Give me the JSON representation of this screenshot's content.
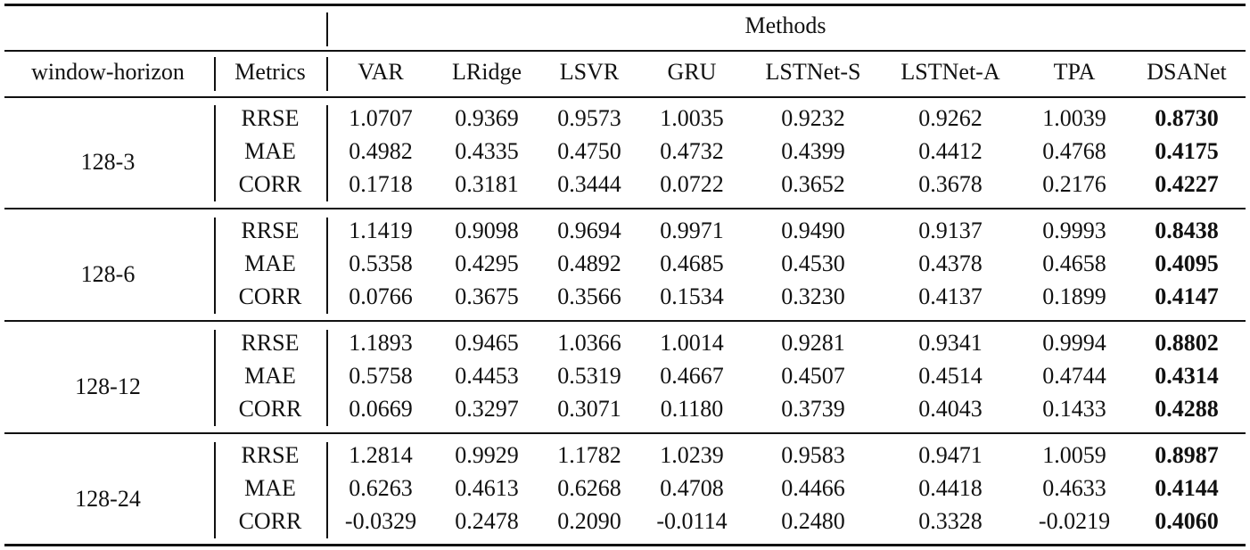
{
  "header": {
    "group_label": "Methods",
    "col_window": "window-horizon",
    "col_metrics": "Metrics",
    "methods": [
      "VAR",
      "LRidge",
      "LSVR",
      "GRU",
      "LSTNet-S",
      "LSTNet-A",
      "TPA",
      "DSANet"
    ]
  },
  "groups": [
    {
      "window": "128-3",
      "rows": [
        {
          "metric": "RRSE",
          "values": [
            "1.0707",
            "0.9369",
            "0.9573",
            "1.0035",
            "0.9232",
            "0.9262",
            "1.0039",
            "0.8730"
          ]
        },
        {
          "metric": "MAE",
          "values": [
            "0.4982",
            "0.4335",
            "0.4750",
            "0.4732",
            "0.4399",
            "0.4412",
            "0.4768",
            "0.4175"
          ]
        },
        {
          "metric": "CORR",
          "values": [
            "0.1718",
            "0.3181",
            "0.3444",
            "0.0722",
            "0.3652",
            "0.3678",
            "0.2176",
            "0.4227"
          ]
        }
      ]
    },
    {
      "window": "128-6",
      "rows": [
        {
          "metric": "RRSE",
          "values": [
            "1.1419",
            "0.9098",
            "0.9694",
            "0.9971",
            "0.9490",
            "0.9137",
            "0.9993",
            "0.8438"
          ]
        },
        {
          "metric": "MAE",
          "values": [
            "0.5358",
            "0.4295",
            "0.4892",
            "0.4685",
            "0.4530",
            "0.4378",
            "0.4658",
            "0.4095"
          ]
        },
        {
          "metric": "CORR",
          "values": [
            "0.0766",
            "0.3675",
            "0.3566",
            "0.1534",
            "0.3230",
            "0.4137",
            "0.1899",
            "0.4147"
          ]
        }
      ]
    },
    {
      "window": "128-12",
      "rows": [
        {
          "metric": "RRSE",
          "values": [
            "1.1893",
            "0.9465",
            "1.0366",
            "1.0014",
            "0.9281",
            "0.9341",
            "0.9994",
            "0.8802"
          ]
        },
        {
          "metric": "MAE",
          "values": [
            "0.5758",
            "0.4453",
            "0.5319",
            "0.4667",
            "0.4507",
            "0.4514",
            "0.4744",
            "0.4314"
          ]
        },
        {
          "metric": "CORR",
          "values": [
            "0.0669",
            "0.3297",
            "0.3071",
            "0.1180",
            "0.3739",
            "0.4043",
            "0.1433",
            "0.4288"
          ]
        }
      ]
    },
    {
      "window": "128-24",
      "rows": [
        {
          "metric": "RRSE",
          "values": [
            "1.2814",
            "0.9929",
            "1.1782",
            "1.0239",
            "0.9583",
            "0.9471",
            "1.0059",
            "0.8987"
          ]
        },
        {
          "metric": "MAE",
          "values": [
            "0.6263",
            "0.4613",
            "0.6268",
            "0.4708",
            "0.4466",
            "0.4418",
            "0.4633",
            "0.4144"
          ]
        },
        {
          "metric": "CORR",
          "values": [
            "-0.0329",
            "0.2478",
            "0.2090",
            "-0.0114",
            "0.2480",
            "0.3328",
            "-0.0219",
            "0.4060"
          ]
        }
      ]
    }
  ]
}
